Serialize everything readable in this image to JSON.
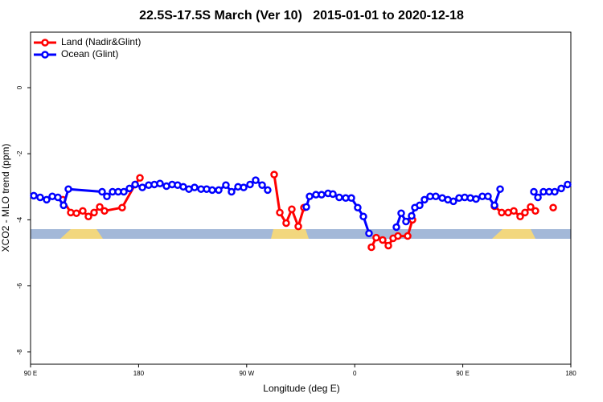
{
  "chart_data": {
    "type": "line",
    "title": "22.5S-17.5S March (Ver 10)   2015-01-01 to 2020-12-18",
    "x_label": "Longitude (deg E)",
    "y_label": "XCO2 - MLO trend (ppm)",
    "xlim": [
      90,
      540
    ],
    "ylim": [
      -8.37,
      1.68
    ],
    "xticks": [
      {
        "value": 90,
        "label": "90 E"
      },
      180,
      {
        "value": 270,
        "label": "90 W"
      },
      {
        "value": 360,
        "label": "0"
      },
      {
        "value": 450,
        "label": "90 E"
      },
      {
        "value": 540,
        "label": "180"
      }
    ],
    "yticks": [
      -8,
      -6,
      -4,
      -2,
      0
    ],
    "legend": "top-left",
    "series": [
      {
        "name": "Land (Nadir&Glint)",
        "color": "#ff0000",
        "x": [
          116.8,
          123.5,
          128.2,
          133.5,
          138.2,
          142.9,
          147.6,
          151.6,
          166.3,
          177.1,
          181.1,
          null,
          292.9,
          297.6,
          302.9,
          307.6,
          313.0,
          317.7,
          null,
          373.9,
          377.9,
          383.3,
          388.0,
          392.0,
          396.0,
          404.1,
          408.1,
          null,
          476.4,
          482.4,
          487.8,
          492.5,
          497.8,
          501.8,
          506.5,
          510.5,
          null,
          525.3
        ],
        "values": [
          -3.39,
          -3.78,
          -3.8,
          -3.73,
          -3.9,
          -3.78,
          -3.61,
          -3.73,
          -3.63,
          -2.93,
          -2.73,
          null,
          -2.63,
          -3.78,
          -4.1,
          -3.68,
          -4.2,
          -3.63,
          null,
          -4.83,
          -4.54,
          -4.61,
          -4.78,
          -4.56,
          -4.49,
          -4.49,
          -4.0,
          null,
          -3.59,
          -3.78,
          -3.78,
          -3.73,
          -3.9,
          -3.78,
          -3.61,
          -3.73,
          null,
          -3.63
        ]
      },
      {
        "name": "Ocean (Glint)",
        "color": "#0000ff",
        "x": [
          92.7,
          98.0,
          103.4,
          108.1,
          112.8,
          117.5,
          121.5,
          149.6,
          153.6,
          158.3,
          163.0,
          167.7,
          172.4,
          177.1,
          183.1,
          188.4,
          193.1,
          197.8,
          203.2,
          207.9,
          212.5,
          217.2,
          221.9,
          226.6,
          232.0,
          236.7,
          241.3,
          246.7,
          252.7,
          257.4,
          262.8,
          267.5,
          272.8,
          277.5,
          282.9,
          287.5,
          null,
          319.7,
          322.4,
          327.7,
          332.4,
          337.8,
          341.8,
          347.1,
          352.5,
          357.2,
          362.5,
          367.2,
          371.9,
          null,
          394.7,
          398.7,
          402.7,
          407.4,
          410.1,
          414.1,
          418.1,
          422.8,
          427.5,
          432.9,
          437.6,
          442.2,
          446.9,
          451.6,
          456.3,
          461.0,
          466.3,
          471.0,
          476.4,
          481.1,
          null,
          509.2,
          512.6,
          517.2,
          521.9,
          526.6,
          532.0,
          537.3
        ],
        "values": [
          -3.27,
          -3.32,
          -3.39,
          -3.29,
          -3.32,
          -3.56,
          -3.07,
          -3.15,
          -3.29,
          -3.15,
          -3.15,
          -3.15,
          -3.05,
          -2.93,
          -3.02,
          -2.95,
          -2.93,
          -2.9,
          -2.98,
          -2.93,
          -2.95,
          -3.0,
          -3.07,
          -3.02,
          -3.07,
          -3.07,
          -3.1,
          -3.1,
          -2.95,
          -3.15,
          -3.0,
          -3.02,
          -2.93,
          -2.8,
          -2.95,
          -3.1,
          null,
          -3.61,
          -3.29,
          -3.24,
          -3.24,
          -3.2,
          -3.22,
          -3.32,
          -3.34,
          -3.34,
          -3.63,
          -3.9,
          -4.41,
          null,
          -4.22,
          -3.8,
          -4.05,
          -3.88,
          -3.63,
          -3.56,
          -3.39,
          -3.29,
          -3.29,
          -3.34,
          -3.39,
          -3.44,
          -3.34,
          -3.32,
          -3.34,
          -3.37,
          -3.29,
          -3.29,
          -3.56,
          -3.07,
          null,
          -3.15,
          -3.32,
          -3.15,
          -3.15,
          -3.15,
          -3.05,
          -2.93
        ]
      }
    ]
  }
}
